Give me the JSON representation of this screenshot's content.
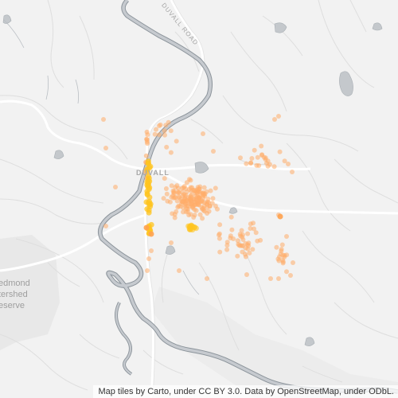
{
  "map": {
    "place_labels": {
      "town": "DUVALL",
      "road": "DUVALL ROAD",
      "reserve_line1": "edmond",
      "reserve_line2": "tershed",
      "reserve_line3": "eserve"
    },
    "attribution": "Map tiles by Carto, under CC BY 3.0. Data by OpenStreetMap, under ODbL.",
    "colors": {
      "land": "#f2f2f2",
      "water": "#c4c8cc",
      "river_outline": "#8f979e",
      "road": "#ffffff",
      "minor_road": "#dcdcdc",
      "park": "#e9e9e9",
      "point_low": "#ffad6a",
      "point_high": "#ffc41f"
    }
  }
}
